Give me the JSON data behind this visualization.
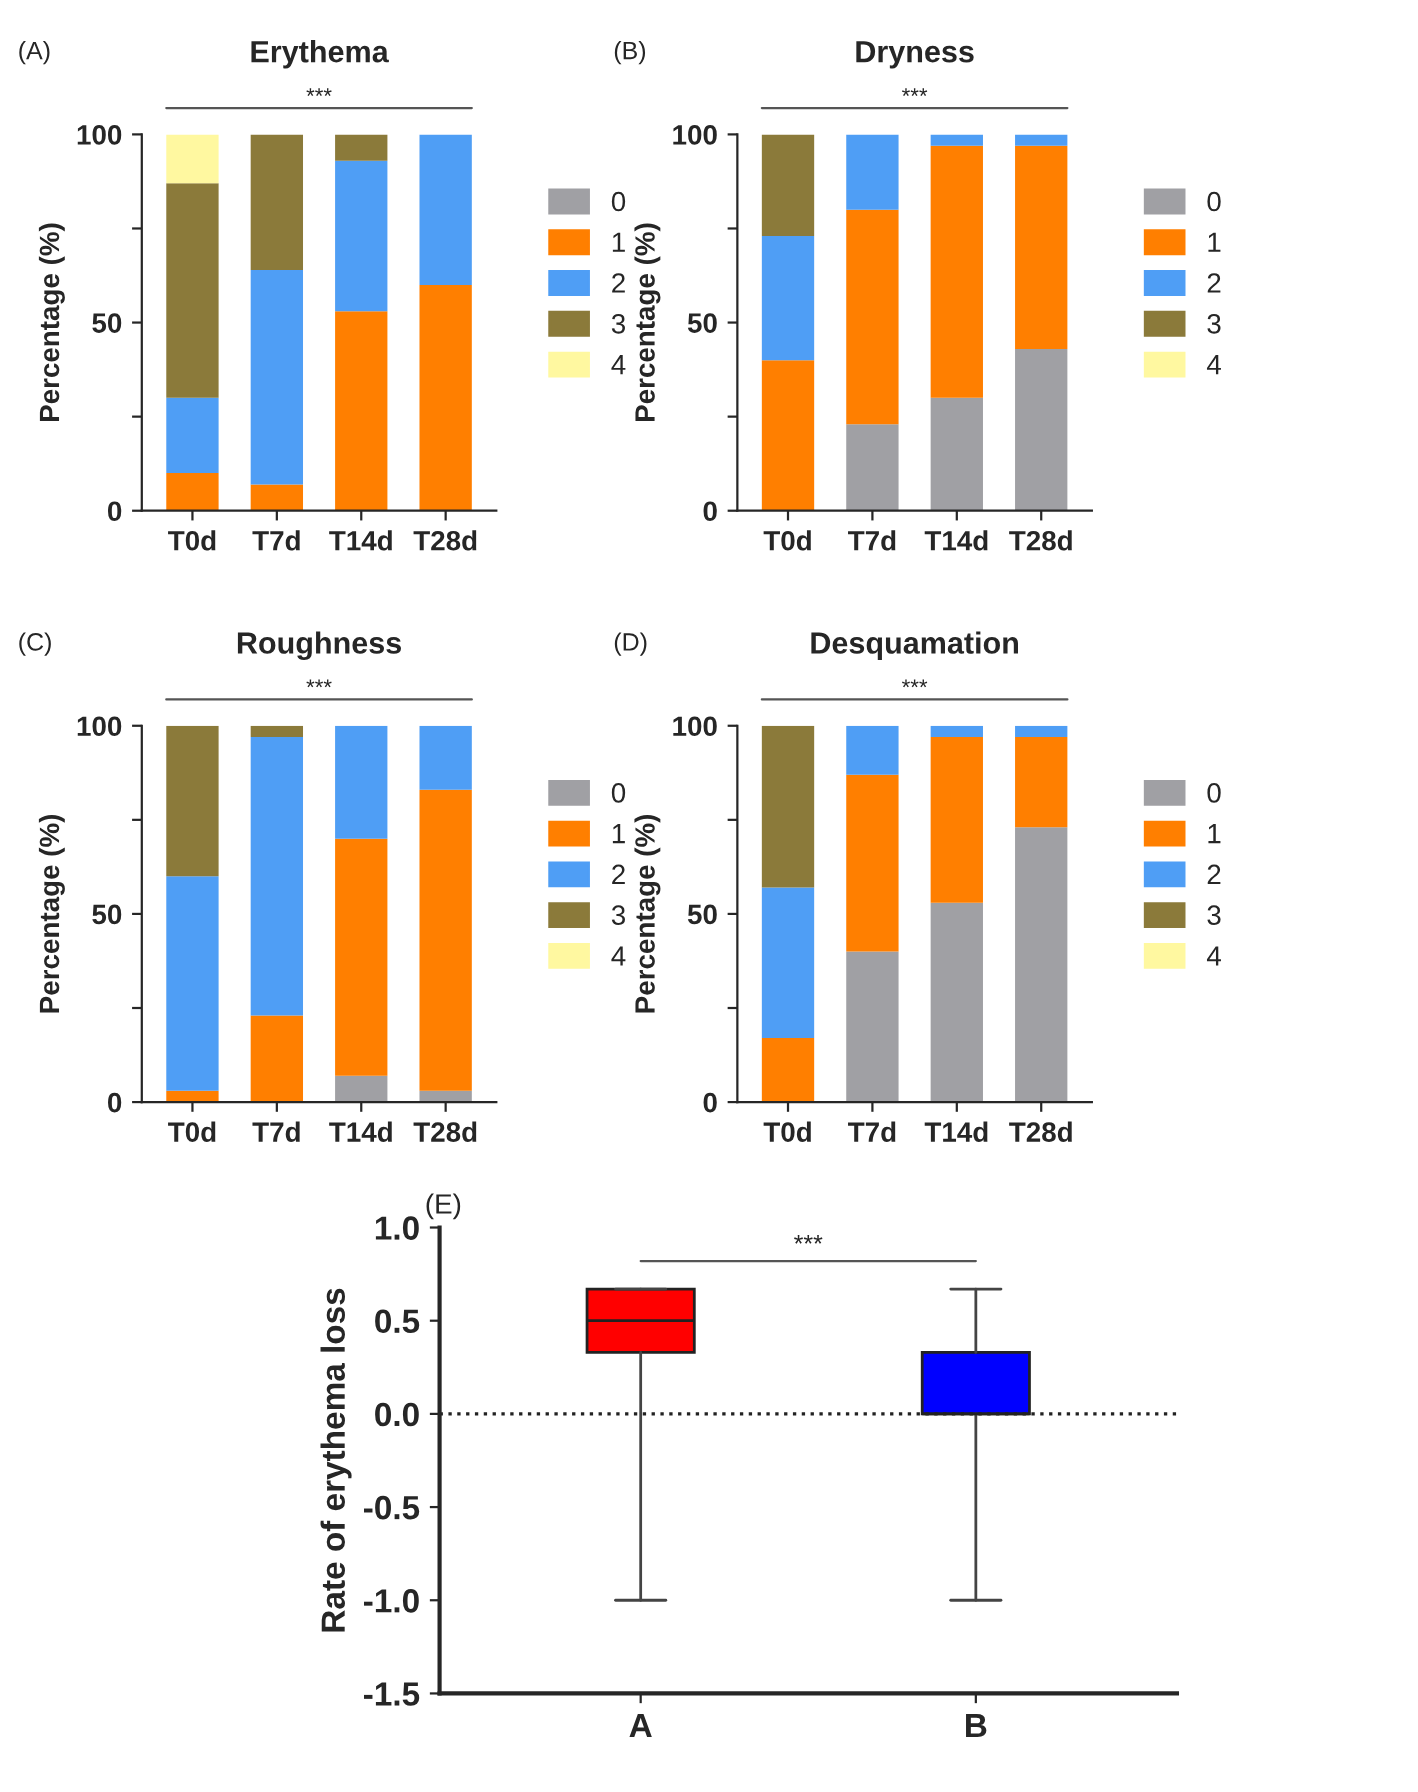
{
  "chart_data": [
    {
      "type": "bar",
      "title": "Erythema",
      "ylabel": "Percentage (%)",
      "categories": [
        "T0d",
        "T7d",
        "T14d",
        "T28d"
      ],
      "stacked": true,
      "legend": "right",
      "ylim": [
        0,
        100
      ],
      "yticks": [
        0,
        {
          "value": 25,
          "label": null
        },
        50,
        {
          "value": 75,
          "label": null
        },
        100
      ],
      "annotations": [
        "(A)",
        "***"
      ],
      "series": [
        {
          "name": "0",
          "color": "#a0a0a4",
          "values": [
            0,
            0,
            0,
            0
          ]
        },
        {
          "name": "1",
          "color": "#ff7f00",
          "values": [
            10,
            7,
            53,
            60
          ]
        },
        {
          "name": "2",
          "color": "#4f9ef5",
          "values": [
            20,
            57,
            40,
            40
          ]
        },
        {
          "name": "3",
          "color": "#8b7a3a",
          "values": [
            57,
            36,
            7,
            0
          ]
        },
        {
          "name": "4",
          "color": "#fff8a0",
          "values": [
            13,
            0,
            0,
            0
          ]
        }
      ]
    },
    {
      "type": "bar",
      "title": "Dryness",
      "ylabel": "Percentage (%)",
      "categories": [
        "T0d",
        "T7d",
        "T14d",
        "T28d"
      ],
      "stacked": true,
      "legend": "right",
      "ylim": [
        0,
        100
      ],
      "yticks": [
        0,
        {
          "value": 25,
          "label": null
        },
        50,
        {
          "value": 75,
          "label": null
        },
        100
      ],
      "annotations": [
        "(B)",
        "***"
      ],
      "series": [
        {
          "name": "0",
          "color": "#a0a0a4",
          "values": [
            0,
            23,
            30,
            43
          ]
        },
        {
          "name": "1",
          "color": "#ff7f00",
          "values": [
            40,
            57,
            67,
            54
          ]
        },
        {
          "name": "2",
          "color": "#4f9ef5",
          "values": [
            33,
            20,
            3,
            3
          ]
        },
        {
          "name": "3",
          "color": "#8b7a3a",
          "values": [
            27,
            0,
            0,
            0
          ]
        },
        {
          "name": "4",
          "color": "#fff8a0",
          "values": [
            0,
            0,
            0,
            0
          ]
        }
      ]
    },
    {
      "type": "bar",
      "title": "Roughness",
      "ylabel": "Percentage (%)",
      "categories": [
        "T0d",
        "T7d",
        "T14d",
        "T28d"
      ],
      "stacked": true,
      "legend": "right",
      "ylim": [
        0,
        100
      ],
      "yticks": [
        0,
        {
          "value": 25,
          "label": null
        },
        50,
        {
          "value": 75,
          "label": null
        },
        100
      ],
      "annotations": [
        "(C)",
        "***"
      ],
      "series": [
        {
          "name": "0",
          "color": "#a0a0a4",
          "values": [
            0,
            0,
            7,
            3
          ]
        },
        {
          "name": "1",
          "color": "#ff7f00",
          "values": [
            3,
            23,
            63,
            80
          ]
        },
        {
          "name": "2",
          "color": "#4f9ef5",
          "values": [
            57,
            74,
            30,
            17
          ]
        },
        {
          "name": "3",
          "color": "#8b7a3a",
          "values": [
            40,
            3,
            0,
            0
          ]
        },
        {
          "name": "4",
          "color": "#fff8a0",
          "values": [
            0,
            0,
            0,
            0
          ]
        }
      ]
    },
    {
      "type": "bar",
      "title": "Desquamation",
      "ylabel": "Percentage (%)",
      "categories": [
        "T0d",
        "T7d",
        "T14d",
        "T28d"
      ],
      "stacked": true,
      "legend": "right",
      "ylim": [
        0,
        100
      ],
      "yticks": [
        0,
        {
          "value": 25,
          "label": null
        },
        50,
        {
          "value": 75,
          "label": null
        },
        100
      ],
      "annotations": [
        "(D)",
        "***"
      ],
      "series": [
        {
          "name": "0",
          "color": "#a0a0a4",
          "values": [
            0,
            40,
            53,
            73
          ]
        },
        {
          "name": "1",
          "color": "#ff7f00",
          "values": [
            17,
            47,
            44,
            24
          ]
        },
        {
          "name": "2",
          "color": "#4f9ef5",
          "values": [
            40,
            13,
            3,
            3
          ]
        },
        {
          "name": "3",
          "color": "#8b7a3a",
          "values": [
            43,
            0,
            0,
            0
          ]
        },
        {
          "name": "4",
          "color": "#fff8a0",
          "values": [
            0,
            0,
            0,
            0
          ]
        }
      ]
    },
    {
      "type": "box",
      "ylabel": "Rate of erythema loss",
      "categories": [
        "A",
        "B"
      ],
      "colors": [
        "#ff0000",
        "#0000ff"
      ],
      "ylim": [
        -1.5,
        1.0
      ],
      "yticks": [
        {
          "value": 1.0,
          "label": "1.0"
        },
        {
          "value": 0.5,
          "label": "0.5"
        },
        {
          "value": 0.0,
          "label": "0.0"
        },
        {
          "value": -0.5,
          "label": "-0.5"
        },
        {
          "value": -1.0,
          "label": "-1.0"
        },
        {
          "value": -1.5,
          "label": "-1.5"
        }
      ],
      "annotations": [
        "(E)",
        "***"
      ],
      "ref_lines": [
        {
          "axis": "y",
          "value": 0,
          "line_style": "dotted"
        }
      ],
      "boxes": [
        {
          "low": -1.0,
          "q1": 0.33,
          "median": 0.5,
          "q3": 0.67,
          "high": 0.67
        },
        {
          "low": -1.0,
          "q1": 0.0,
          "median": 0.0,
          "q3": 0.33,
          "high": 0.67
        }
      ]
    }
  ]
}
